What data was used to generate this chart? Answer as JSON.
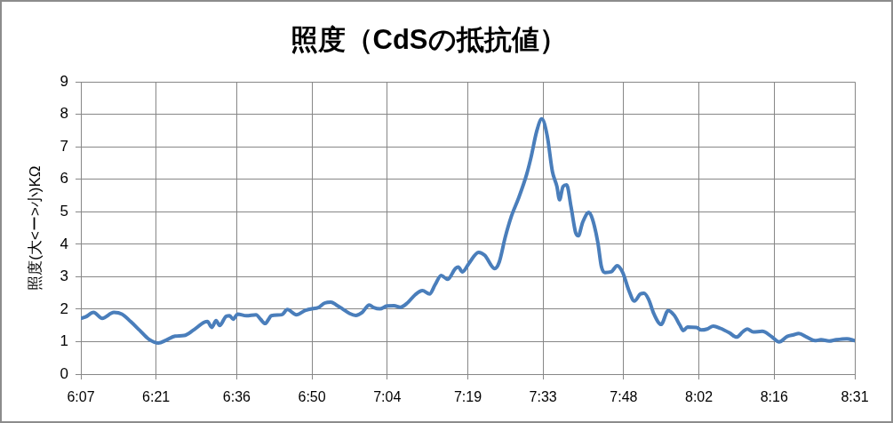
{
  "chart_data": {
    "type": "line",
    "title": "照度（CdSの抵抗値）",
    "ylabel": "照度(大<ー>小)KΩ",
    "xlim": [
      6.1167,
      8.5167
    ],
    "xticks": [
      {
        "value": 6.1167,
        "label": "6:07"
      },
      {
        "value": 6.35,
        "label": "6:21"
      },
      {
        "value": 6.6,
        "label": "6:36"
      },
      {
        "value": 6.8333,
        "label": "6:50"
      },
      {
        "value": 7.0667,
        "label": "7:04"
      },
      {
        "value": 7.3167,
        "label": "7:19"
      },
      {
        "value": 7.55,
        "label": "7:33"
      },
      {
        "value": 7.8,
        "label": "7:48"
      },
      {
        "value": 8.0333,
        "label": "8:02"
      },
      {
        "value": 8.2667,
        "label": "8:16"
      },
      {
        "value": 8.5167,
        "label": "8:31"
      }
    ],
    "ylim": [
      0,
      9
    ],
    "yticks": [
      0,
      1,
      2,
      3,
      4,
      5,
      6,
      7,
      8,
      9
    ],
    "grid": true,
    "line_style": "solid",
    "series": [
      {
        "color": "#4a7ebb",
        "x": [
          6.1167,
          6.131,
          6.156,
          6.183,
          6.219,
          6.244,
          6.271,
          6.299,
          6.327,
          6.357,
          6.382,
          6.409,
          6.437,
          6.465,
          6.5,
          6.509,
          6.523,
          6.536,
          6.547,
          6.567,
          6.578,
          6.589,
          6.603,
          6.63,
          6.66,
          6.674,
          6.688,
          6.699,
          6.707,
          6.74,
          6.757,
          6.785,
          6.812,
          6.837,
          6.851,
          6.873,
          6.892,
          6.909,
          6.928,
          6.95,
          6.969,
          6.989,
          7.011,
          7.025,
          7.044,
          7.066,
          7.088,
          7.107,
          7.129,
          7.154,
          7.176,
          7.198,
          7.215,
          7.234,
          7.254,
          7.278,
          7.287,
          7.3,
          7.32,
          7.35,
          7.369,
          7.4,
          7.414,
          7.433,
          7.452,
          7.474,
          7.499,
          7.513,
          7.53,
          7.546,
          7.563,
          7.579,
          7.593,
          7.601,
          7.612,
          7.623,
          7.637,
          7.651,
          7.659,
          7.673,
          7.692,
          7.703,
          7.72,
          7.731,
          7.742,
          7.761,
          7.78,
          7.797,
          7.816,
          7.833,
          7.852,
          7.863,
          7.877,
          7.894,
          7.916,
          7.938,
          7.957,
          7.974,
          7.985,
          7.998,
          8.026,
          8.04,
          8.059,
          8.078,
          8.1,
          8.128,
          8.15,
          8.169,
          8.183,
          8.202,
          8.23,
          8.258,
          8.282,
          8.307,
          8.327,
          8.343,
          8.368,
          8.393,
          8.412,
          8.437,
          8.459,
          8.492,
          8.5167
        ],
        "values": [
          1.72,
          1.76,
          1.9,
          1.72,
          1.9,
          1.85,
          1.62,
          1.35,
          1.08,
          0.96,
          1.05,
          1.17,
          1.19,
          1.35,
          1.6,
          1.62,
          1.44,
          1.65,
          1.5,
          1.78,
          1.8,
          1.69,
          1.85,
          1.8,
          1.83,
          1.69,
          1.56,
          1.69,
          1.8,
          1.83,
          1.99,
          1.83,
          1.96,
          2.02,
          2.04,
          2.19,
          2.22,
          2.13,
          2.01,
          1.87,
          1.81,
          1.9,
          2.13,
          2.05,
          2.01,
          2.1,
          2.11,
          2.06,
          2.19,
          2.45,
          2.57,
          2.47,
          2.75,
          3.04,
          2.92,
          3.25,
          3.3,
          3.15,
          3.41,
          3.75,
          3.66,
          3.25,
          3.45,
          4.23,
          4.87,
          5.42,
          6.15,
          6.69,
          7.47,
          7.86,
          7.33,
          6.24,
          5.78,
          5.37,
          5.78,
          5.83,
          5.14,
          4.36,
          4.26,
          4.68,
          4.98,
          4.78,
          4.05,
          3.31,
          3.13,
          3.15,
          3.34,
          3.13,
          2.58,
          2.25,
          2.47,
          2.49,
          2.31,
          1.85,
          1.53,
          1.96,
          1.81,
          1.51,
          1.34,
          1.45,
          1.44,
          1.36,
          1.39,
          1.48,
          1.41,
          1.27,
          1.14,
          1.3,
          1.39,
          1.3,
          1.32,
          1.16,
          0.99,
          1.16,
          1.21,
          1.25,
          1.14,
          1.03,
          1.06,
          1.02,
          1.06,
          1.09,
          1.03
        ]
      }
    ]
  }
}
